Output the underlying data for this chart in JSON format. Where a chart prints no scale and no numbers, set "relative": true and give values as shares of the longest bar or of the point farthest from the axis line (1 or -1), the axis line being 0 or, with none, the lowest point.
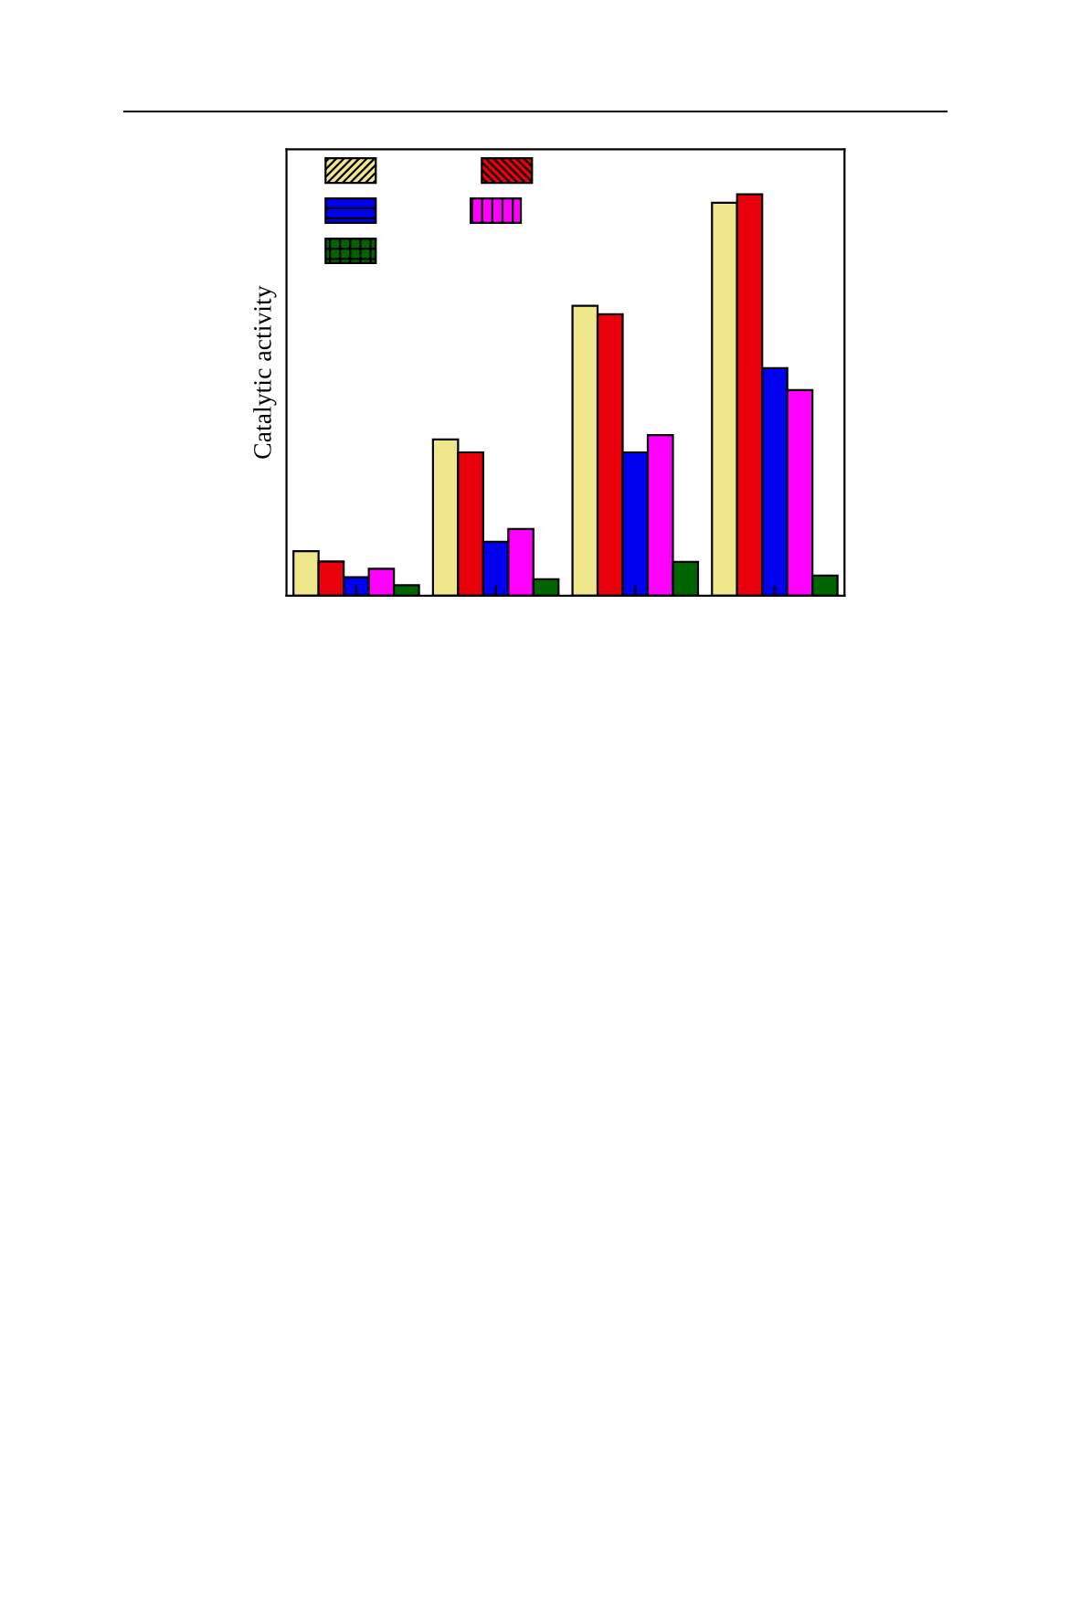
{
  "chart_data": {
    "type": "bar",
    "relative": true,
    "ylabel": "Catalytic activity",
    "categories": [
      null,
      null,
      null,
      null
    ],
    "series": [
      {
        "color": "#f0e68c",
        "values": [
          0.111,
          0.389,
          0.722,
          0.979
        ]
      },
      {
        "color": "#e8000b",
        "values": [
          0.085,
          0.357,
          0.701,
          1
        ]
      },
      {
        "color": "#0000ee",
        "values": [
          0.046,
          0.134,
          0.357,
          0.567
        ]
      },
      {
        "color": "#ff00ff",
        "values": [
          0.067,
          0.166,
          0.4,
          0.512
        ]
      },
      {
        "color": "#006400",
        "values": [
          0.026,
          0.041,
          0.084,
          0.05
        ]
      }
    ]
  }
}
